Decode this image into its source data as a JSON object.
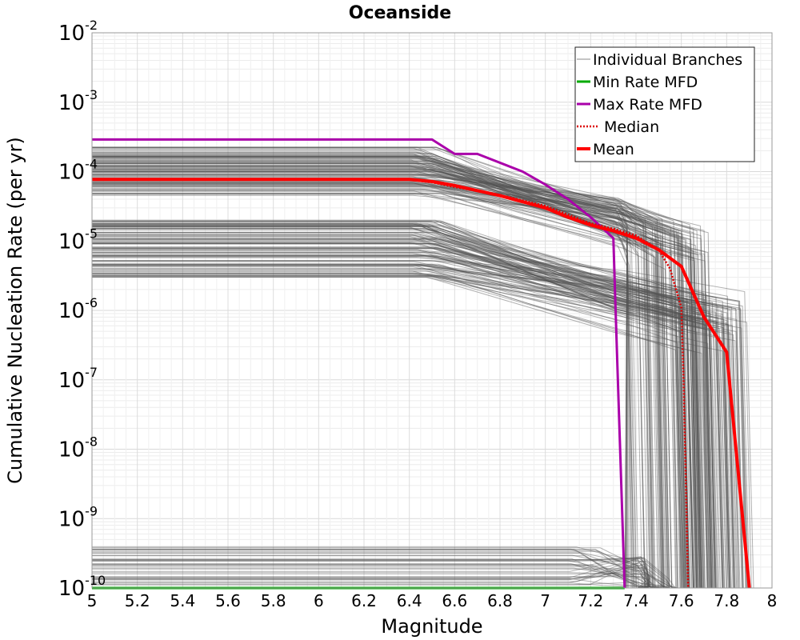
{
  "chart_data": {
    "type": "line",
    "title": "Oceanside",
    "xlabel": "Magnitude",
    "ylabel": "Cumulative Nucleation Rate (per yr)",
    "xlim": [
      5,
      8
    ],
    "ylim": [
      1e-10,
      0.01
    ],
    "yscale": "log",
    "grid": true,
    "legend_position": "top-right",
    "x_ticks": [
      "5",
      "5.2",
      "5.4",
      "5.6",
      "5.8",
      "6",
      "6.2",
      "6.4",
      "6.6",
      "6.8",
      "7",
      "7.2",
      "7.4",
      "7.6",
      "7.8",
      "8"
    ],
    "y_ticks": [
      {
        "base": "10",
        "exp": "-2",
        "value": 0.01
      },
      {
        "base": "10",
        "exp": "-3",
        "value": 0.001
      },
      {
        "base": "10",
        "exp": "-4",
        "value": 0.0001
      },
      {
        "base": "10",
        "exp": "-5",
        "value": 1e-05
      },
      {
        "base": "10",
        "exp": "-6",
        "value": 1e-06
      },
      {
        "base": "10",
        "exp": "-7",
        "value": 1e-07
      },
      {
        "base": "10",
        "exp": "-8",
        "value": 1e-08
      },
      {
        "base": "10",
        "exp": "-9",
        "value": 1e-09
      },
      {
        "base": "10",
        "exp": "-10",
        "value": 1e-10
      }
    ],
    "series": [
      {
        "name": "Max Rate MFD",
        "color": "#aa00aa",
        "style": "solid",
        "x": [
          5.0,
          6.5,
          6.6,
          6.7,
          6.9,
          7.0,
          7.1,
          7.2,
          7.3,
          7.31,
          7.35
        ],
        "y": [
          0.00029,
          0.00029,
          0.00018,
          0.00018,
          0.0001,
          6.5e-05,
          4e-05,
          2.2e-05,
          1.1e-05,
          1e-06,
          1e-10
        ]
      },
      {
        "name": "Min Rate MFD",
        "color": "#00aa00",
        "style": "solid",
        "x": [
          5.0,
          7.35
        ],
        "y": [
          1e-10,
          1e-10
        ]
      },
      {
        "name": "Median",
        "color": "#dd0000",
        "style": "dotted",
        "x": [
          5.0,
          6.4,
          6.5,
          6.6,
          6.8,
          7.0,
          7.1,
          7.2,
          7.3,
          7.4,
          7.5,
          7.55,
          7.6,
          7.61,
          7.63
        ],
        "y": [
          7.6e-05,
          7.6e-05,
          7e-05,
          6e-05,
          4.6e-05,
          3.2e-05,
          2.4e-05,
          1.8e-05,
          1.5e-05,
          1.2e-05,
          7.5e-06,
          4e-06,
          1.1e-06,
          1e-07,
          1e-10
        ]
      },
      {
        "name": "Mean",
        "color": "#ff0000",
        "style": "solid",
        "x": [
          5.0,
          6.4,
          6.5,
          6.6,
          6.8,
          7.0,
          7.1,
          7.2,
          7.3,
          7.4,
          7.5,
          7.6,
          7.7,
          7.8,
          7.9
        ],
        "y": [
          7.7e-05,
          7.7e-05,
          7.2e-05,
          6.3e-05,
          4.5e-05,
          3e-05,
          2.2e-05,
          1.7e-05,
          1.4e-05,
          1.1e-05,
          7.5e-06,
          4.3e-06,
          8e-07,
          2.5e-07,
          1e-10
        ]
      }
    ],
    "individual_branches": {
      "name": "Individual Branches",
      "color": "#555555",
      "groups": [
        {
          "y_range": [
            4.5e-05,
            0.00023
          ],
          "flat_until": 6.4,
          "knee_m": 7.3,
          "knee_y": 2.2e-05,
          "drop_m_range": [
            7.35,
            7.75
          ]
        },
        {
          "y_range": [
            3e-06,
            2e-05
          ],
          "flat_until": 6.4,
          "knee_m": 7.3,
          "knee_y": 1.9e-06,
          "drop_m_range": [
            7.6,
            7.92
          ]
        },
        {
          "y_range": [
            1.1e-10,
            4e-10
          ],
          "flat_until": 7.1,
          "knee_m": 7.4,
          "knee_y": 1.5e-10,
          "drop_m_range": [
            7.4,
            7.6
          ]
        }
      ]
    },
    "legend": [
      "Individual Branches",
      "Min Rate MFD",
      "Max Rate MFD",
      "Median",
      "Mean"
    ]
  }
}
